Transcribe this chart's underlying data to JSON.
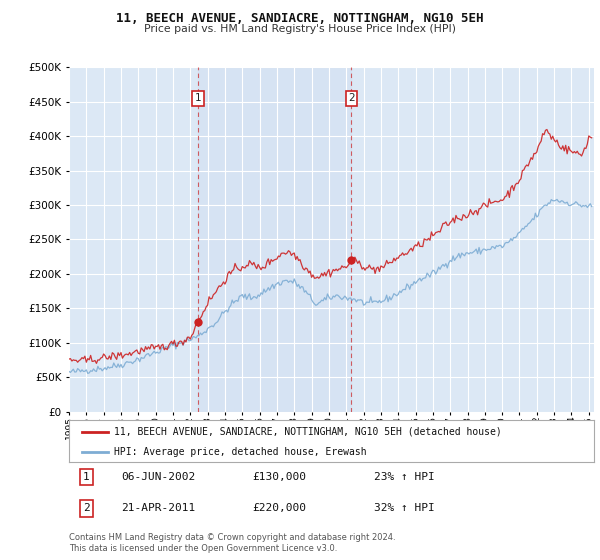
{
  "title": "11, BEECH AVENUE, SANDIACRE, NOTTINGHAM, NG10 5EH",
  "subtitle": "Price paid vs. HM Land Registry's House Price Index (HPI)",
  "xlim_start": 1995.0,
  "xlim_end": 2025.3,
  "ylim": [
    0,
    500000
  ],
  "yticks": [
    0,
    50000,
    100000,
    150000,
    200000,
    250000,
    300000,
    350000,
    400000,
    450000,
    500000
  ],
  "plot_bg_color": "#dce8f5",
  "grid_color": "#ffffff",
  "legend_label_red": "11, BEECH AVENUE, SANDIACRE, NOTTINGHAM, NG10 5EH (detached house)",
  "legend_label_blue": "HPI: Average price, detached house, Erewash",
  "purchase1_date": 2002.44,
  "purchase1_price": 130000,
  "purchase1_label": "1",
  "purchase2_date": 2011.3,
  "purchase2_price": 220000,
  "purchase2_label": "2",
  "annotation1_date": "06-JUN-2002",
  "annotation1_price": "£130,000",
  "annotation1_hpi": "23% ↑ HPI",
  "annotation2_date": "21-APR-2011",
  "annotation2_price": "£220,000",
  "annotation2_hpi": "32% ↑ HPI",
  "footer": "Contains HM Land Registry data © Crown copyright and database right 2024.\nThis data is licensed under the Open Government Licence v3.0.",
  "red_color": "#cc2222",
  "blue_color": "#7eadd4",
  "vline_color": "#cc2222"
}
